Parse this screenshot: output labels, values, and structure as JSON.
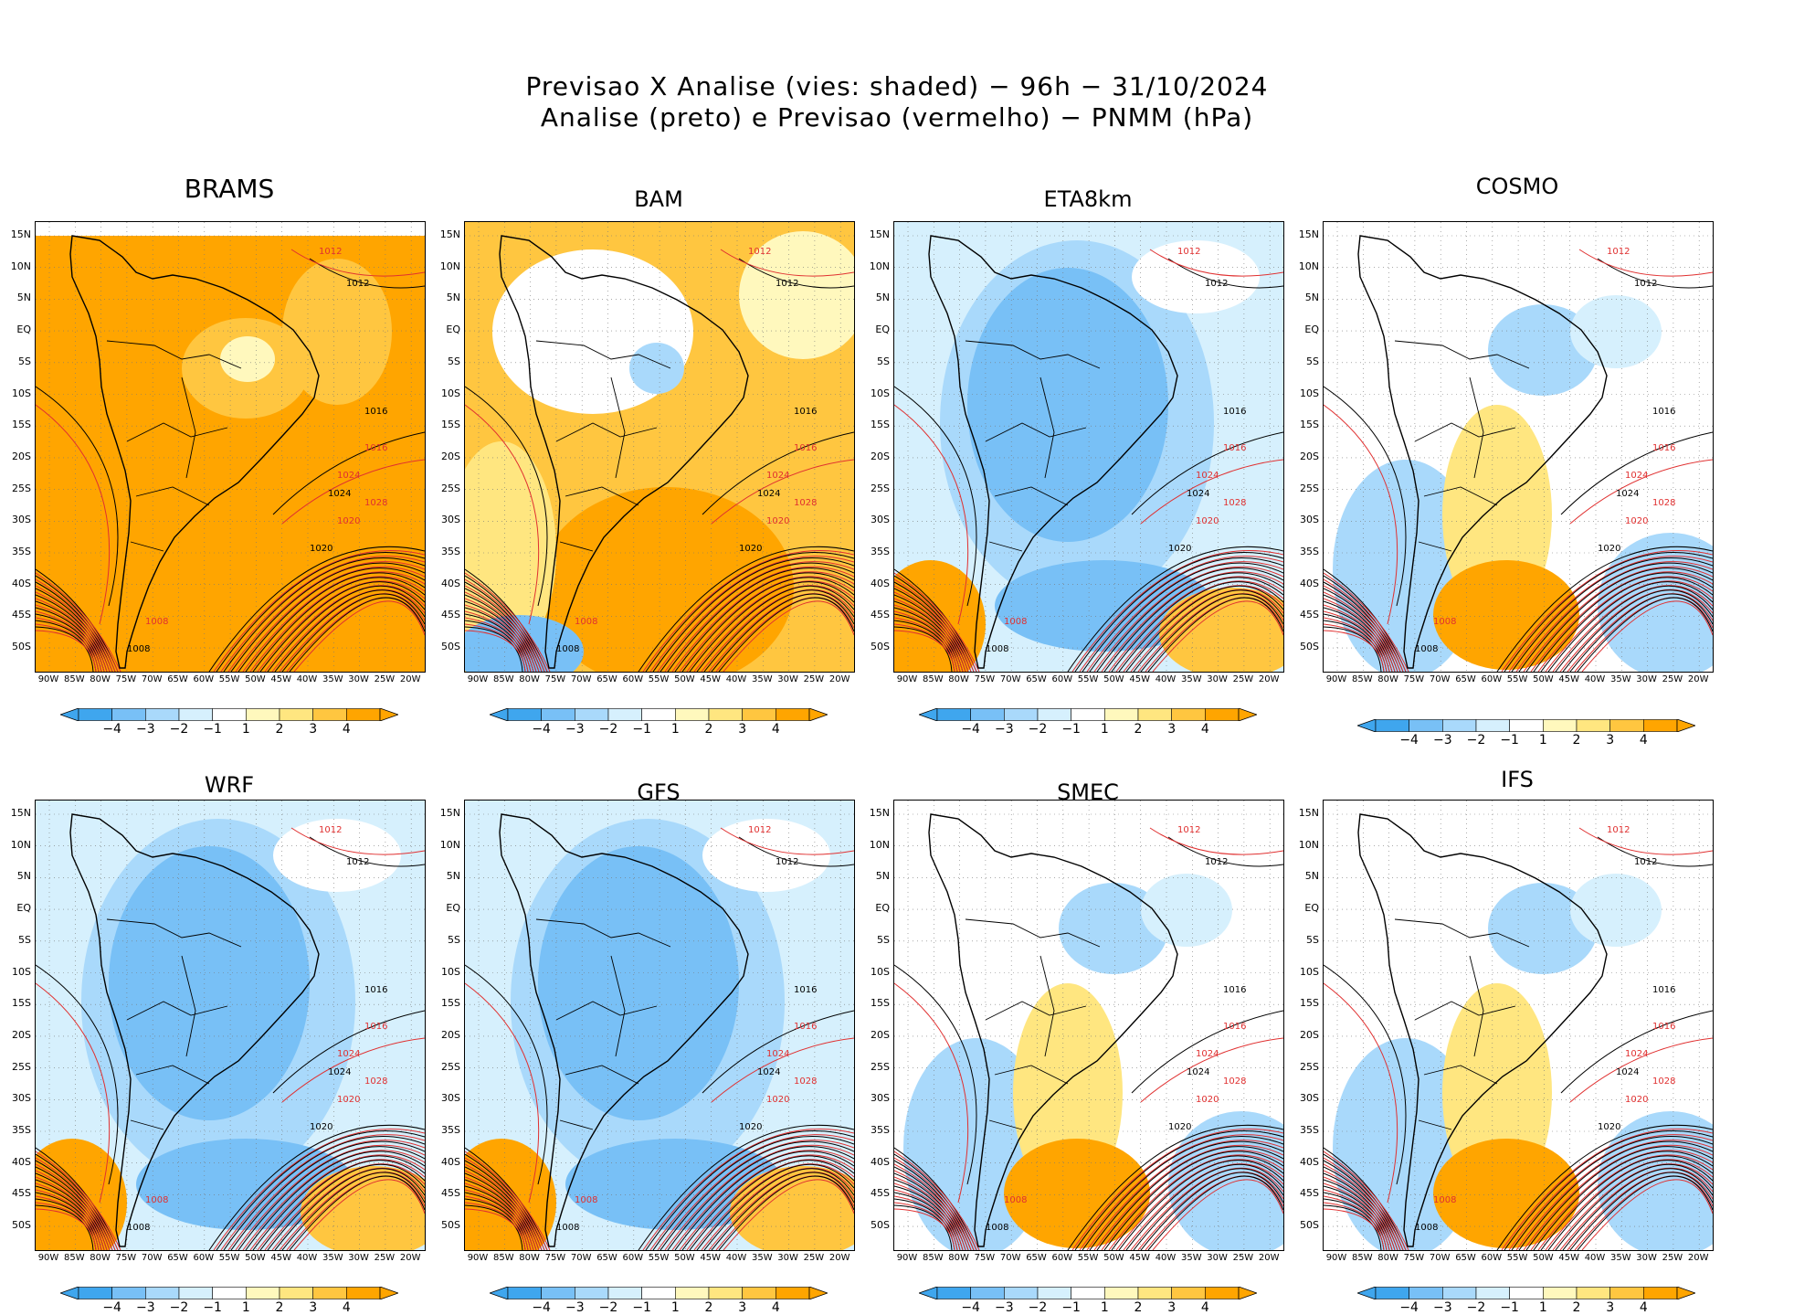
{
  "title": {
    "line1": "Previsao X Analise (vies: shaded) − 96h − 31/10/2024",
    "line2": "Analise (preto) e Previsao (vermelho) − PNMM (hPa)"
  },
  "lat_labels": [
    "15N",
    "10N",
    "5N",
    "EQ",
    "5S",
    "10S",
    "15S",
    "20S",
    "25S",
    "30S",
    "35S",
    "40S",
    "45S",
    "50S"
  ],
  "lon_labels": [
    "90W",
    "85W",
    "80W",
    "75W",
    "70W",
    "65W",
    "60W",
    "55W",
    "50W",
    "45W",
    "40W",
    "35W",
    "30W",
    "25W",
    "20W"
  ],
  "colorbar_labels": [
    "−4",
    "−3",
    "−2",
    "−1",
    "1",
    "2",
    "3",
    "4"
  ],
  "colors": {
    "neg4": "#3fa6ee",
    "neg3": "#78c0f6",
    "neg2": "#a9d9fb",
    "neg1": "#d6f0fd",
    "zero": "#ffffff",
    "pos1": "#fff8bd",
    "pos2": "#ffe680",
    "pos3": "#ffc640",
    "pos4": "#ffa500",
    "analysis": "#000000",
    "forecast": "#e03030",
    "grid": "#777777"
  },
  "panels": [
    {
      "model": "BRAMS",
      "bias": "warm-all"
    },
    {
      "model": "BAM",
      "bias": "warm"
    },
    {
      "model": "ETA8km",
      "bias": "cold"
    },
    {
      "model": "COSMO",
      "bias": "mixed"
    },
    {
      "model": "WRF",
      "bias": "cold"
    },
    {
      "model": "GFS",
      "bias": "cold"
    },
    {
      "model": "SMEC",
      "bias": "mixed"
    },
    {
      "model": "IFS",
      "bias": "mixed"
    }
  ],
  "isobar_labels": {
    "analysis": [
      "1008",
      "1012",
      "1016",
      "1020",
      "1024"
    ],
    "forecast": [
      "1008",
      "1012",
      "1016",
      "1020",
      "1024",
      "1028"
    ]
  }
}
